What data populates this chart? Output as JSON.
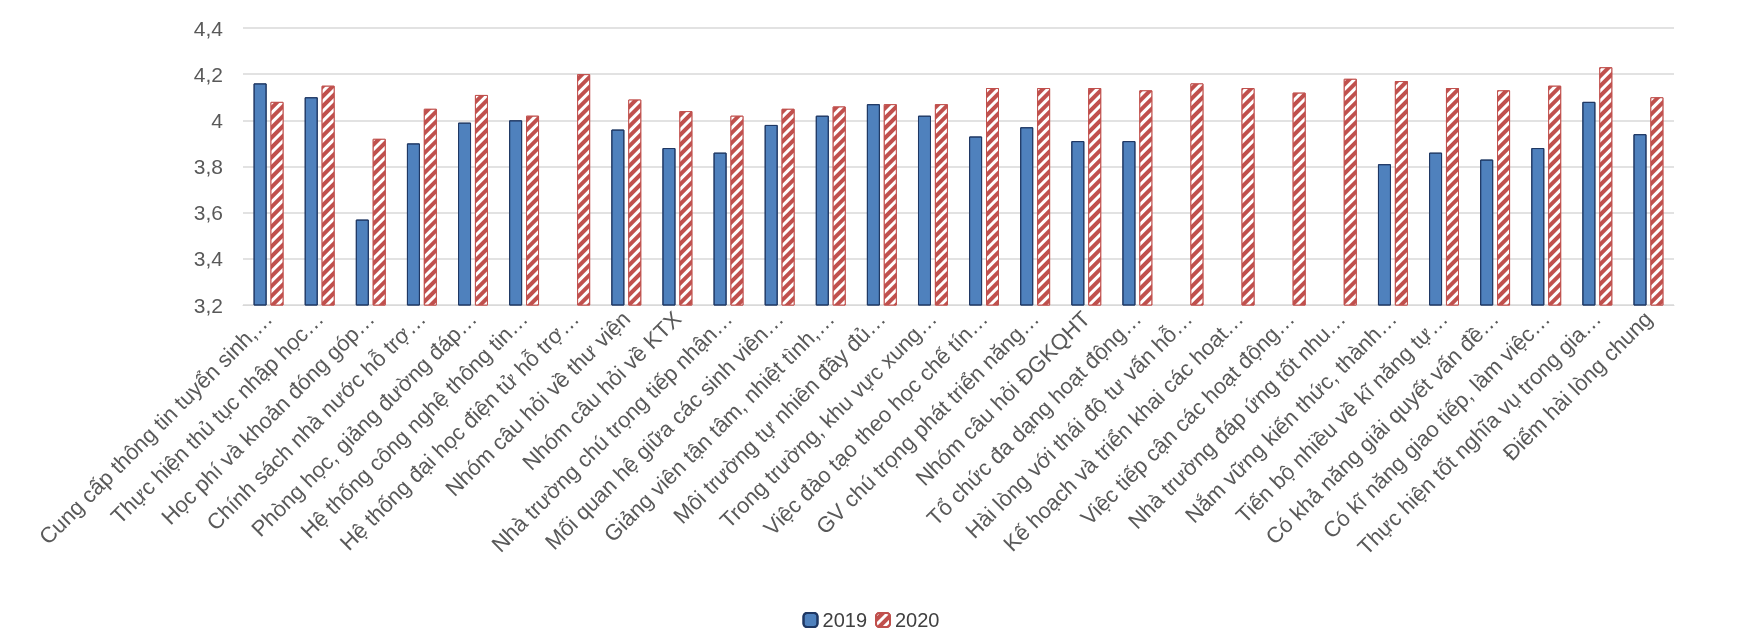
{
  "chart_data": {
    "type": "bar",
    "categories": [
      "Cung cấp thông tin tuyển sinh,…",
      "Thực hiện thủ tục nhập học…",
      "Học phí và khoản đóng góp…",
      "Chính sách nhà nước hỗ trợ…",
      "Phòng học, giảng đường đáp…",
      "Hệ thống công nghệ thông tin…",
      "Hệ thống đại học điện tử hỗ trợ…",
      "Nhóm câu hỏi về thư viện",
      "Nhóm câu hỏi về KTX",
      "Nhà trường chú trọng tiếp nhận…",
      "Mối quan hệ giữa các sinh viên…",
      "Giảng viên tận tâm, nhiệt tình,…",
      "Môi trường tự nhiên đầy đủ…",
      "Trong trường, khu vực xung…",
      "Việc đào tạo theo học chế tín…",
      "GV chú trọng phát triển năng…",
      "Nhóm câu hỏi ĐGKQHT",
      "Tổ chức đa dạng hoạt động…",
      "Hài lòng với thái độ tư vấn hỗ…",
      "Kế hoạch và triển khai các hoạt…",
      "Việc tiếp cận các hoạt động…",
      "Nhà trường đáp ứng tốt nhu…",
      "Nắm vững kiến thức, thành…",
      "Tiến bộ nhiều về kĩ năng tự…",
      "Có khả năng giải quyết vấn đề…",
      "Có kĩ năng giao tiếp, làm việc…",
      "Thực hiện tốt nghĩa vụ trong gia…",
      "Điểm hài lòng chung"
    ],
    "series": [
      {
        "name": "2019",
        "color": "#4f81bd",
        "values": [
          4.16,
          4.1,
          3.57,
          3.9,
          3.99,
          4.0,
          null,
          3.96,
          3.88,
          3.86,
          3.98,
          4.02,
          4.07,
          4.02,
          3.93,
          3.97,
          3.91,
          3.91,
          null,
          null,
          null,
          null,
          3.81,
          3.86,
          3.83,
          3.88,
          4.08,
          3.94
        ]
      },
      {
        "name": "2020",
        "color": "#c0504d",
        "values": [
          4.08,
          4.15,
          3.92,
          4.05,
          4.11,
          4.02,
          4.2,
          4.09,
          4.04,
          4.02,
          4.05,
          4.06,
          4.07,
          4.07,
          4.14,
          4.14,
          4.14,
          4.13,
          4.16,
          4.14,
          4.12,
          4.18,
          4.17,
          4.14,
          4.13,
          4.15,
          4.23,
          4.1
        ]
      }
    ],
    "ylim": [
      3.2,
      4.4
    ],
    "yticks": [
      {
        "value": 3.2,
        "label": "3,2"
      },
      {
        "value": 3.4,
        "label": "3,4"
      },
      {
        "value": 3.6,
        "label": "3,6"
      },
      {
        "value": 3.8,
        "label": "3,8"
      },
      4,
      {
        "value": 4.2,
        "label": "4,2"
      },
      {
        "value": 4.4,
        "label": "4,4"
      }
    ],
    "grid": "y",
    "legend": "bottom"
  }
}
